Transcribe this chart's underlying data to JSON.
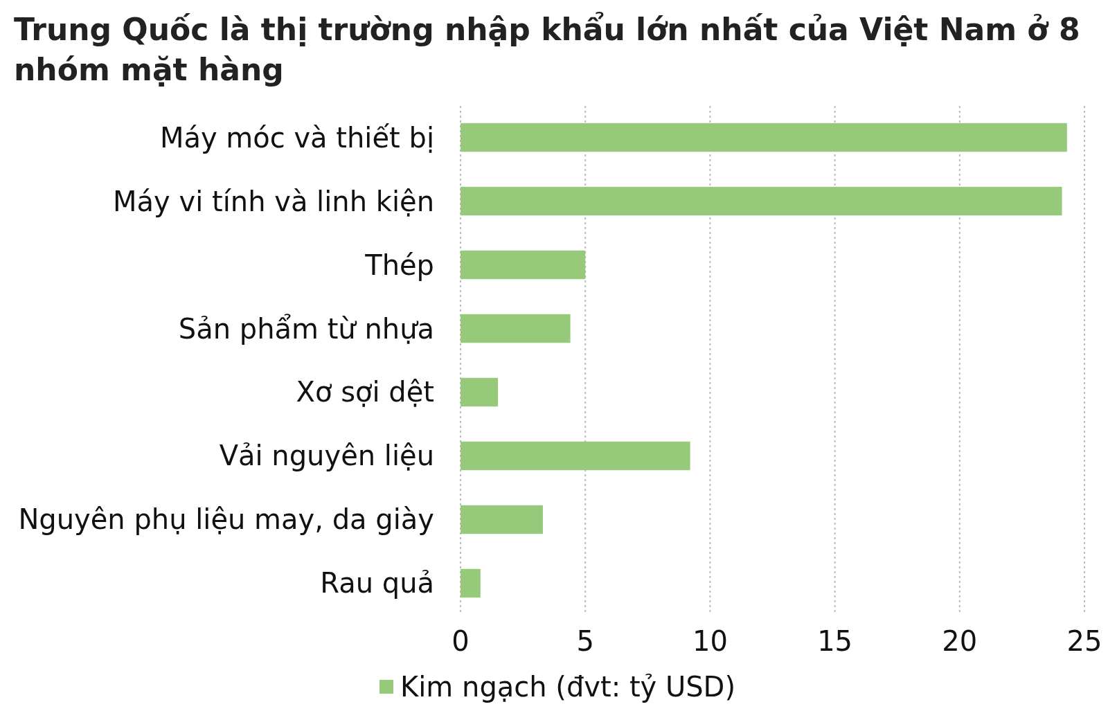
{
  "chart_data": {
    "type": "bar",
    "orientation": "horizontal",
    "title": "Trung Quốc là thị trường nhập khẩu lớn nhất của Việt Nam ở 8 nhóm mặt hàng",
    "categories": [
      "Máy móc và thiết bị",
      "Máy vi tính và linh kiện",
      "Thép",
      "Sản phẩm từ nhựa",
      "Xơ sợi dệt",
      "Vải nguyên liệu",
      "Nguyên phụ liệu may, da giày",
      "Rau quả"
    ],
    "series": [
      {
        "name": "Kim ngạch (đvt: tỷ USD)",
        "color": "#97c97a",
        "values": [
          24.3,
          24.1,
          5.0,
          4.4,
          1.5,
          9.2,
          3.3,
          0.8
        ]
      }
    ],
    "xlim": [
      0,
      25
    ],
    "xticks": [
      0,
      5,
      10,
      15,
      20,
      25
    ],
    "grid": "x",
    "legend": "bottom"
  }
}
